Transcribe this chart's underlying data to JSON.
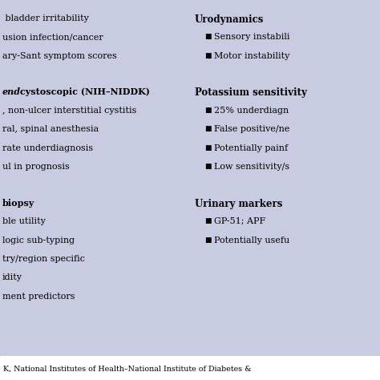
{
  "background_color": "#c8cce0",
  "footer_bg": "#ffffff",
  "footer_text": "K, National Institutes of Health–National Institute of Diabetes &",
  "left_col_lines": [
    {
      "text": " bladder irritability",
      "bold": false
    },
    {
      "text": "usion infection/cancer",
      "bold": false
    },
    {
      "text": "ary-Sant symptom scores",
      "bold": false
    },
    {
      "text": "",
      "bold": false
    },
    {
      "text": "end cystoscopic (NIH-NIDDK)",
      "bold": true,
      "italic_prefix": "end"
    },
    {
      "text": ", non-ulcer interstitial cystitis",
      "bold": false
    },
    {
      "text": "ral, spinal anesthesia",
      "bold": false
    },
    {
      "text": "rate underdiagnosis",
      "bold": false
    },
    {
      "text": "ul in prognosis",
      "bold": false
    },
    {
      "text": "",
      "bold": false
    },
    {
      "text": "biopsy",
      "bold": true
    },
    {
      "text": "ble utility",
      "bold": false
    },
    {
      "text": "logic sub-typing",
      "bold": false
    },
    {
      "text": "try/region specific",
      "bold": false
    },
    {
      "text": "idity",
      "bold": false
    },
    {
      "text": "ment predictors",
      "bold": false
    }
  ],
  "right_col_sections": [
    {
      "header": "Urodynamics",
      "bullets": [
        "Sensory instabili",
        "Motor instability"
      ]
    },
    {
      "header": "Potassium sensitivity",
      "bullets": [
        "25% underdiagn",
        "False positive/ne",
        "Potentially painf",
        "Low sensitivity/s"
      ]
    },
    {
      "header": "Urinary markers",
      "bullets": [
        "GP-51; APF",
        "Potentially usefu"
      ]
    }
  ],
  "font_size": 8.0,
  "header_font_size": 8.5,
  "footer_font_size": 6.8
}
